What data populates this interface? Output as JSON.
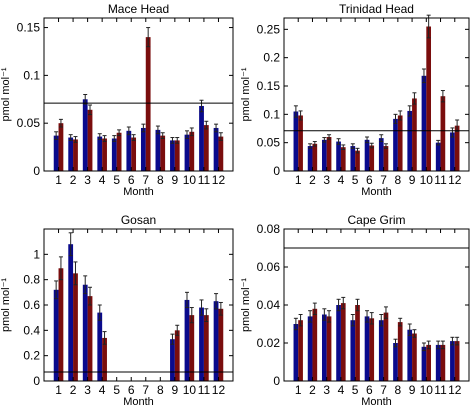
{
  "colors": {
    "series_a": "#0a0a8c",
    "series_b": "#7a0d0d",
    "axis": "#000000"
  },
  "chart_data": [
    {
      "type": "bar",
      "title": "Mace Head",
      "xlabel": "Month",
      "ylabel": "pmol mol⁻¹",
      "categories": [
        "1",
        "2",
        "3",
        "4",
        "5",
        "6",
        "7",
        "8",
        "9",
        "10",
        "11",
        "12"
      ],
      "ylim": [
        0,
        0.16
      ],
      "yticks": [
        0,
        0.05,
        0.1,
        0.15
      ],
      "ytick_labels": [
        "0",
        "0.05",
        "0.1",
        "0.15"
      ],
      "reference_line": 0.071,
      "series": [
        {
          "values": [
            0.037,
            0.035,
            0.075,
            0.036,
            0.034,
            0.042,
            0.045,
            0.043,
            0.032,
            0.038,
            0.068,
            0.045
          ],
          "errors": [
            0.004,
            0.003,
            0.005,
            0.003,
            0.003,
            0.004,
            0.004,
            0.004,
            0.003,
            0.004,
            0.006,
            0.004
          ]
        },
        {
          "values": [
            0.05,
            0.033,
            0.064,
            0.034,
            0.04,
            0.035,
            0.14,
            0.037,
            0.032,
            0.041,
            0.048,
            0.036
          ],
          "errors": [
            0.004,
            0.003,
            0.005,
            0.003,
            0.003,
            0.003,
            0.01,
            0.003,
            0.003,
            0.004,
            0.004,
            0.004
          ]
        }
      ]
    },
    {
      "type": "bar",
      "title": "Trinidad Head",
      "xlabel": "Month",
      "ylabel": "pmol mol⁻¹",
      "categories": [
        "1",
        "2",
        "3",
        "4",
        "5",
        "6",
        "7",
        "8",
        "9",
        "10",
        "11",
        "12"
      ],
      "ylim": [
        0,
        0.27
      ],
      "yticks": [
        0,
        0.05,
        0.1,
        0.15,
        0.2,
        0.25
      ],
      "ytick_labels": [
        "0",
        "0.05",
        "0.1",
        "0.15",
        "0.2",
        "0.25"
      ],
      "reference_line": 0.071,
      "series": [
        {
          "values": [
            0.105,
            0.044,
            0.055,
            0.052,
            0.044,
            0.055,
            0.058,
            0.092,
            0.106,
            0.168,
            0.05,
            0.068
          ],
          "errors": [
            0.01,
            0.004,
            0.004,
            0.005,
            0.004,
            0.005,
            0.006,
            0.008,
            0.009,
            0.012,
            0.004,
            0.008
          ]
        },
        {
          "values": [
            0.098,
            0.048,
            0.06,
            0.042,
            0.036,
            0.045,
            0.044,
            0.098,
            0.128,
            0.255,
            0.132,
            0.08
          ],
          "errors": [
            0.008,
            0.004,
            0.004,
            0.004,
            0.004,
            0.004,
            0.004,
            0.008,
            0.01,
            0.02,
            0.01,
            0.01
          ]
        }
      ]
    },
    {
      "type": "bar",
      "title": "Gosan",
      "xlabel": "Month",
      "ylabel": "pmol mol⁻¹",
      "categories": [
        "1",
        "2",
        "3",
        "4",
        "5",
        "6",
        "7",
        "8",
        "9",
        "10",
        "11",
        "12"
      ],
      "ylim": [
        0,
        1.2
      ],
      "yticks": [
        0,
        0.2,
        0.4,
        0.6,
        0.8,
        1
      ],
      "ytick_labels": [
        "0",
        "0.2",
        "0.4",
        "0.6",
        "0.8",
        "1"
      ],
      "reference_line": 0.071,
      "series": [
        {
          "values": [
            0.72,
            1.08,
            0.76,
            0.54,
            null,
            null,
            null,
            null,
            0.33,
            0.64,
            0.58,
            0.63
          ],
          "errors": [
            0.07,
            0.09,
            0.07,
            0.06,
            null,
            null,
            null,
            null,
            0.04,
            0.06,
            0.06,
            0.06
          ]
        },
        {
          "values": [
            0.89,
            0.85,
            0.67,
            0.34,
            null,
            null,
            null,
            null,
            0.4,
            0.52,
            0.52,
            0.57
          ],
          "errors": [
            0.09,
            0.09,
            0.07,
            0.05,
            null,
            null,
            null,
            null,
            0.04,
            0.06,
            0.05,
            0.05
          ]
        }
      ]
    },
    {
      "type": "bar",
      "title": "Cape Grim",
      "xlabel": "Month",
      "ylabel": "pmol mol⁻¹",
      "categories": [
        "1",
        "2",
        "3",
        "4",
        "5",
        "6",
        "7",
        "8",
        "9",
        "10",
        "11",
        "12"
      ],
      "ylim": [
        0,
        0.08
      ],
      "yticks": [
        0,
        0.02,
        0.04,
        0.06,
        0.08
      ],
      "ytick_labels": [
        "0",
        "0.02",
        "0.04",
        "0.06",
        "0.08"
      ],
      "reference_line": 0.07,
      "series": [
        {
          "values": [
            0.03,
            0.034,
            0.035,
            0.04,
            0.032,
            0.034,
            0.032,
            0.02,
            0.027,
            0.018,
            0.019,
            0.021
          ],
          "errors": [
            0.003,
            0.003,
            0.003,
            0.003,
            0.003,
            0.003,
            0.003,
            0.002,
            0.003,
            0.002,
            0.002,
            0.002
          ]
        },
        {
          "values": [
            0.032,
            0.038,
            0.034,
            0.041,
            0.04,
            0.033,
            0.036,
            0.031,
            0.025,
            0.019,
            0.019,
            0.021
          ],
          "errors": [
            0.003,
            0.003,
            0.003,
            0.003,
            0.003,
            0.003,
            0.003,
            0.002,
            0.002,
            0.002,
            0.002,
            0.002
          ]
        }
      ]
    }
  ]
}
